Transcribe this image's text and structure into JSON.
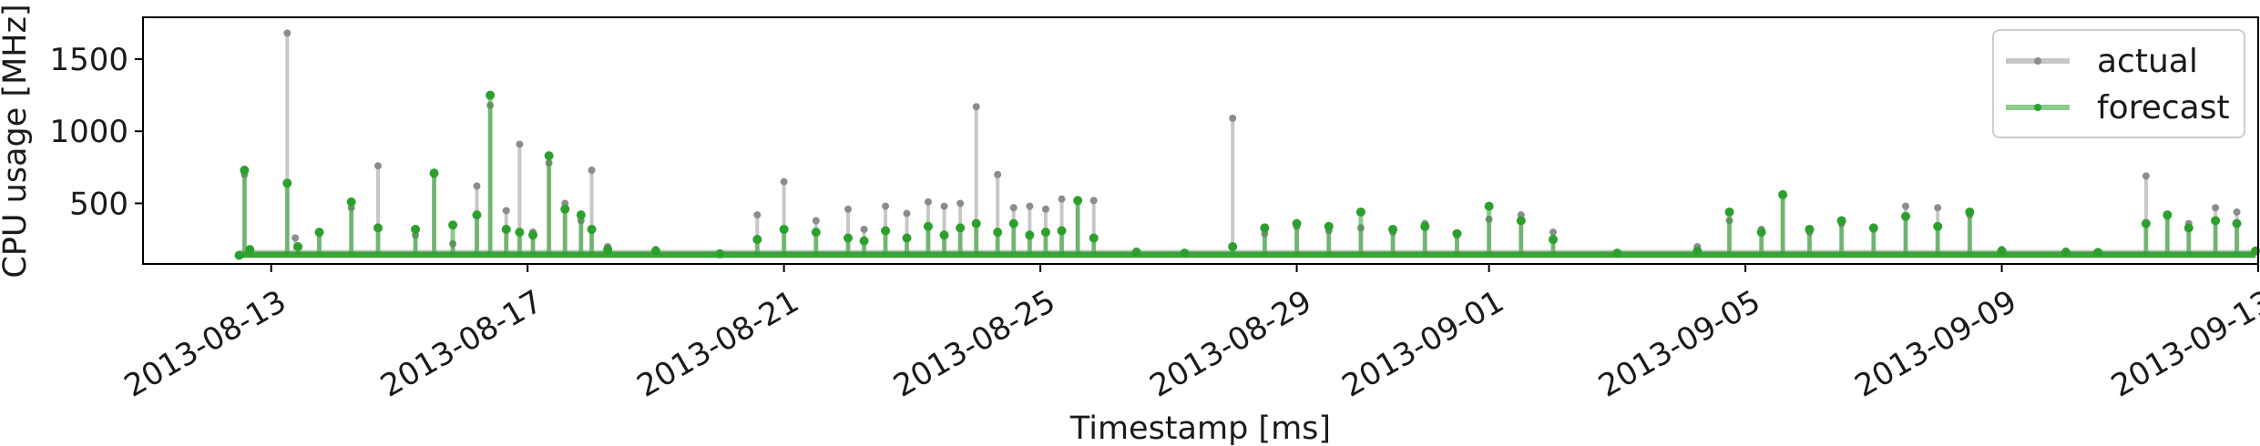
{
  "chart_data": {
    "type": "line",
    "title": "",
    "xlabel": "Timestamp [ms]",
    "ylabel": "CPU usage [MHz]",
    "x_range": [
      "2013-08-11",
      "2013-09-13"
    ],
    "y_range": [
      80,
      1790
    ],
    "x_ticks": [
      "2013-08-13",
      "2013-08-17",
      "2013-08-21",
      "2013-08-25",
      "2013-08-29",
      "2013-09-01",
      "2013-09-05",
      "2013-09-09",
      "2013-09-13"
    ],
    "y_ticks": [
      500,
      1000,
      1500
    ],
    "grid": false,
    "legend_position": "top-right",
    "series": [
      {
        "name": "actual",
        "color": "#c7c7c7",
        "marker_color": "#8c8c8c",
        "baseline": 150,
        "points": [
          [
            "2013-08-12 12:00",
            135
          ],
          [
            "2013-08-12 14:00",
            700
          ],
          [
            "2013-08-12 16:00",
            160
          ],
          [
            "2013-08-13 06:00",
            1680
          ],
          [
            "2013-08-13 09:00",
            260
          ],
          [
            "2013-08-13 18:00",
            290
          ],
          [
            "2013-08-14 06:00",
            470
          ],
          [
            "2013-08-14 16:00",
            760
          ],
          [
            "2013-08-15 06:00",
            280
          ],
          [
            "2013-08-15 13:00",
            700
          ],
          [
            "2013-08-15 20:00",
            220
          ],
          [
            "2013-08-16 05:00",
            620
          ],
          [
            "2013-08-16 10:00",
            1180
          ],
          [
            "2013-08-16 16:00",
            450
          ],
          [
            "2013-08-16 21:00",
            910
          ],
          [
            "2013-08-17 02:00",
            300
          ],
          [
            "2013-08-17 08:00",
            780
          ],
          [
            "2013-08-17 14:00",
            500
          ],
          [
            "2013-08-17 20:00",
            380
          ],
          [
            "2013-08-18 00:00",
            730
          ],
          [
            "2013-08-18 06:00",
            200
          ],
          [
            "2013-08-19 00:00",
            180
          ],
          [
            "2013-08-20 00:00",
            150
          ],
          [
            "2013-08-20 14:00",
            420
          ],
          [
            "2013-08-21 00:00",
            650
          ],
          [
            "2013-08-21 12:00",
            380
          ],
          [
            "2013-08-22 00:00",
            460
          ],
          [
            "2013-08-22 06:00",
            320
          ],
          [
            "2013-08-22 14:00",
            480
          ],
          [
            "2013-08-22 22:00",
            430
          ],
          [
            "2013-08-23 06:00",
            510
          ],
          [
            "2013-08-23 12:00",
            480
          ],
          [
            "2013-08-23 18:00",
            500
          ],
          [
            "2013-08-24 00:00",
            1170
          ],
          [
            "2013-08-24 08:00",
            700
          ],
          [
            "2013-08-24 14:00",
            470
          ],
          [
            "2013-08-24 20:00",
            480
          ],
          [
            "2013-08-25 02:00",
            460
          ],
          [
            "2013-08-25 08:00",
            530
          ],
          [
            "2013-08-25 14:00",
            520
          ],
          [
            "2013-08-25 20:00",
            520
          ],
          [
            "2013-08-26 12:00",
            170
          ],
          [
            "2013-08-27 06:00",
            160
          ],
          [
            "2013-08-28 00:00",
            1090
          ],
          [
            "2013-08-28 12:00",
            290
          ],
          [
            "2013-08-29 00:00",
            340
          ],
          [
            "2013-08-29 12:00",
            310
          ],
          [
            "2013-08-30 00:00",
            330
          ],
          [
            "2013-08-30 12:00",
            300
          ],
          [
            "2013-08-31 00:00",
            360
          ],
          [
            "2013-08-31 12:00",
            280
          ],
          [
            "2013-09-01 00:00",
            390
          ],
          [
            "2013-09-01 12:00",
            420
          ],
          [
            "2013-09-02 00:00",
            300
          ],
          [
            "2013-09-03 00:00",
            160
          ],
          [
            "2013-09-04 06:00",
            200
          ],
          [
            "2013-09-04 18:00",
            380
          ],
          [
            "2013-09-05 06:00",
            320
          ],
          [
            "2013-09-05 14:00",
            560
          ],
          [
            "2013-09-06 00:00",
            300
          ],
          [
            "2013-09-06 12:00",
            360
          ],
          [
            "2013-09-07 00:00",
            320
          ],
          [
            "2013-09-07 12:00",
            480
          ],
          [
            "2013-09-08 00:00",
            470
          ],
          [
            "2013-09-08 12:00",
            420
          ],
          [
            "2013-09-09 00:00",
            180
          ],
          [
            "2013-09-10 00:00",
            170
          ],
          [
            "2013-09-10 12:00",
            160
          ],
          [
            "2013-09-11 06:00",
            690
          ],
          [
            "2013-09-11 14:00",
            410
          ],
          [
            "2013-09-11 22:00",
            360
          ],
          [
            "2013-09-12 08:00",
            470
          ],
          [
            "2013-09-12 16:00",
            440
          ],
          [
            "2013-09-12 23:00",
            170
          ]
        ]
      },
      {
        "name": "forecast",
        "color": "#2ca02c",
        "baseline": 145,
        "points": [
          [
            "2013-08-12 12:00",
            140
          ],
          [
            "2013-08-12 14:00",
            730
          ],
          [
            "2013-08-12 16:00",
            180
          ],
          [
            "2013-08-13 06:00",
            640
          ],
          [
            "2013-08-13 10:00",
            200
          ],
          [
            "2013-08-13 18:00",
            300
          ],
          [
            "2013-08-14 06:00",
            510
          ],
          [
            "2013-08-14 16:00",
            330
          ],
          [
            "2013-08-15 06:00",
            320
          ],
          [
            "2013-08-15 13:00",
            710
          ],
          [
            "2013-08-15 20:00",
            350
          ],
          [
            "2013-08-16 05:00",
            420
          ],
          [
            "2013-08-16 10:00",
            1250
          ],
          [
            "2013-08-16 16:00",
            320
          ],
          [
            "2013-08-16 21:00",
            300
          ],
          [
            "2013-08-17 02:00",
            280
          ],
          [
            "2013-08-17 08:00",
            830
          ],
          [
            "2013-08-17 14:00",
            460
          ],
          [
            "2013-08-17 20:00",
            420
          ],
          [
            "2013-08-18 00:00",
            320
          ],
          [
            "2013-08-18 06:00",
            180
          ],
          [
            "2013-08-19 00:00",
            170
          ],
          [
            "2013-08-20 00:00",
            150
          ],
          [
            "2013-08-20 14:00",
            250
          ],
          [
            "2013-08-21 00:00",
            320
          ],
          [
            "2013-08-21 12:00",
            300
          ],
          [
            "2013-08-22 00:00",
            260
          ],
          [
            "2013-08-22 06:00",
            240
          ],
          [
            "2013-08-22 14:00",
            310
          ],
          [
            "2013-08-22 22:00",
            260
          ],
          [
            "2013-08-23 06:00",
            340
          ],
          [
            "2013-08-23 12:00",
            280
          ],
          [
            "2013-08-23 18:00",
            330
          ],
          [
            "2013-08-24 00:00",
            360
          ],
          [
            "2013-08-24 08:00",
            300
          ],
          [
            "2013-08-24 14:00",
            360
          ],
          [
            "2013-08-24 20:00",
            280
          ],
          [
            "2013-08-25 02:00",
            300
          ],
          [
            "2013-08-25 08:00",
            310
          ],
          [
            "2013-08-25 14:00",
            520
          ],
          [
            "2013-08-25 20:00",
            260
          ],
          [
            "2013-08-26 12:00",
            160
          ],
          [
            "2013-08-27 06:00",
            155
          ],
          [
            "2013-08-28 00:00",
            200
          ],
          [
            "2013-08-28 12:00",
            330
          ],
          [
            "2013-08-29 00:00",
            360
          ],
          [
            "2013-08-29 12:00",
            340
          ],
          [
            "2013-08-30 00:00",
            440
          ],
          [
            "2013-08-30 12:00",
            320
          ],
          [
            "2013-08-31 00:00",
            340
          ],
          [
            "2013-08-31 12:00",
            290
          ],
          [
            "2013-09-01 00:00",
            480
          ],
          [
            "2013-09-01 12:00",
            380
          ],
          [
            "2013-09-02 00:00",
            250
          ],
          [
            "2013-09-03 00:00",
            155
          ],
          [
            "2013-09-04 06:00",
            170
          ],
          [
            "2013-09-04 18:00",
            440
          ],
          [
            "2013-09-05 06:00",
            300
          ],
          [
            "2013-09-05 14:00",
            560
          ],
          [
            "2013-09-06 00:00",
            320
          ],
          [
            "2013-09-06 12:00",
            380
          ],
          [
            "2013-09-07 00:00",
            330
          ],
          [
            "2013-09-07 12:00",
            410
          ],
          [
            "2013-09-08 00:00",
            340
          ],
          [
            "2013-09-08 12:00",
            440
          ],
          [
            "2013-09-09 00:00",
            170
          ],
          [
            "2013-09-10 00:00",
            160
          ],
          [
            "2013-09-10 12:00",
            160
          ],
          [
            "2013-09-11 06:00",
            360
          ],
          [
            "2013-09-11 14:00",
            420
          ],
          [
            "2013-09-11 22:00",
            330
          ],
          [
            "2013-09-12 08:00",
            380
          ],
          [
            "2013-09-12 16:00",
            360
          ],
          [
            "2013-09-12 23:00",
            170
          ]
        ]
      }
    ]
  }
}
